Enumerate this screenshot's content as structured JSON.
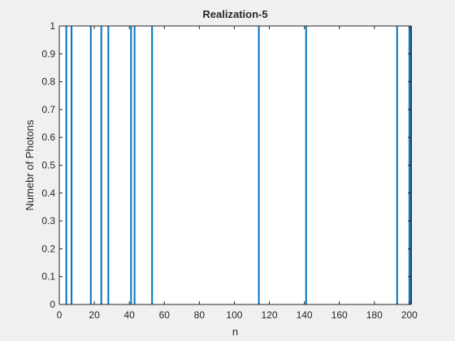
{
  "figure": {
    "background": "#f0f0f0",
    "axes_background": "#ffffff"
  },
  "chart_data": {
    "type": "stem",
    "title": "Realization-5",
    "xlabel": "n",
    "ylabel": "Numebr of Photons",
    "xlim": [
      0,
      201
    ],
    "ylim": [
      0,
      1
    ],
    "xticks": [
      0,
      20,
      40,
      60,
      80,
      100,
      120,
      140,
      160,
      180,
      200
    ],
    "yticks": [
      0,
      0.1,
      0.2,
      0.3,
      0.4,
      0.5,
      0.6,
      0.7,
      0.8,
      0.9,
      1
    ],
    "line_color": "#0072bd",
    "grid": false,
    "x": [
      4,
      7,
      18,
      24,
      28,
      41,
      43,
      53,
      114,
      141,
      193,
      200,
      201
    ],
    "values": [
      1,
      1,
      1,
      1,
      1,
      1,
      1,
      1,
      1,
      1,
      1,
      1,
      1
    ]
  }
}
